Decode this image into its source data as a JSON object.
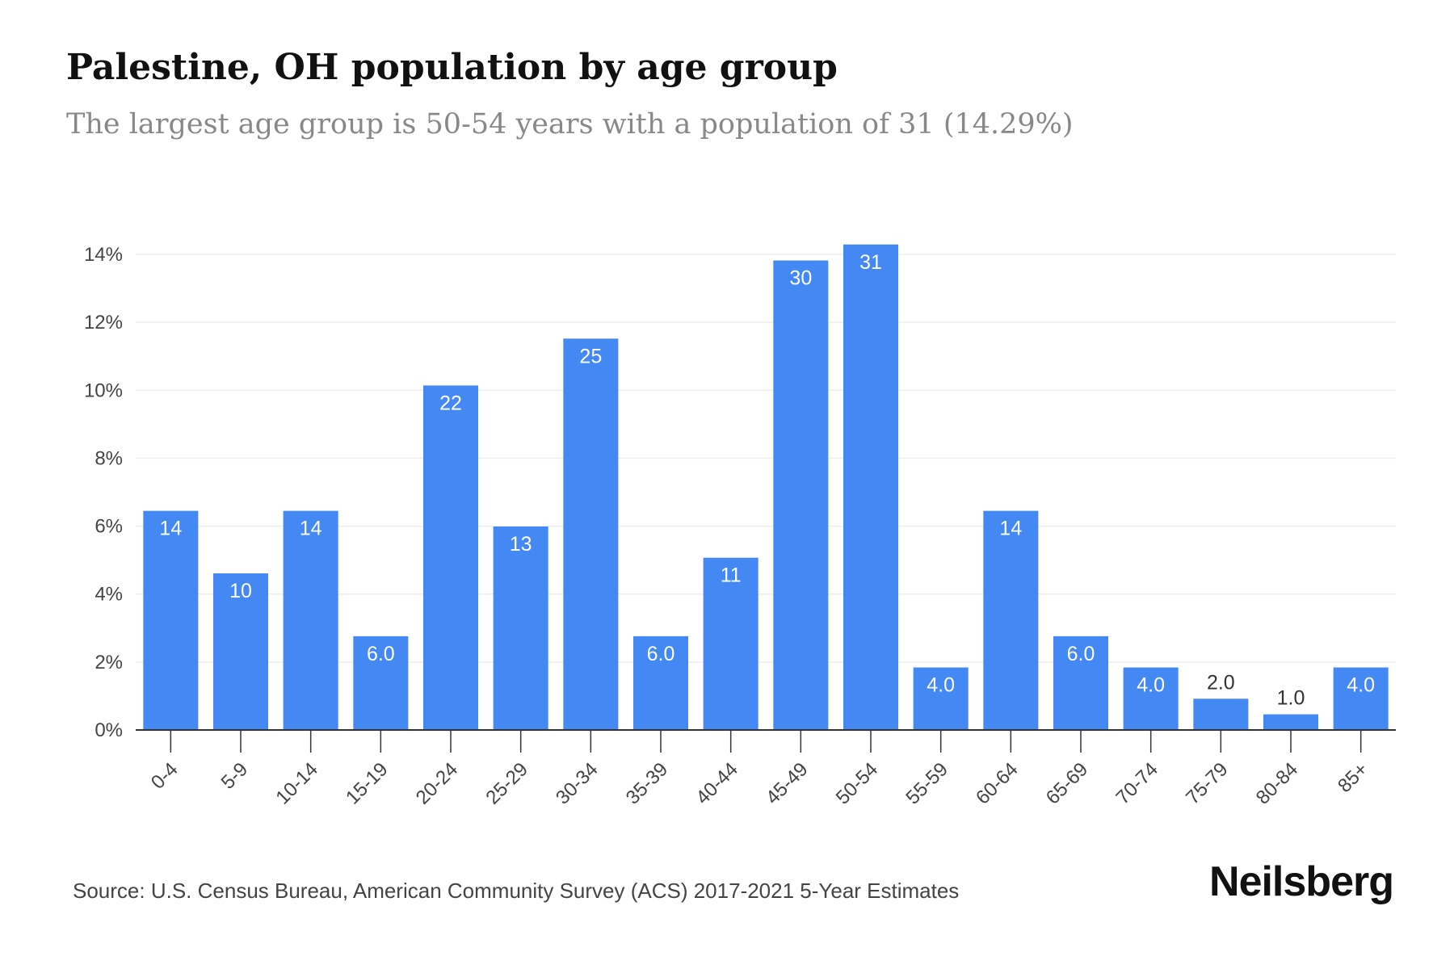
{
  "title": "Palestine, OH population by age group",
  "subtitle": "The largest age group is 50-54 years with a population of 31 (14.29%)",
  "source": "Source: U.S. Census Bureau, American Community Survey (ACS) 2017-2021 5-Year Estimates",
  "brand": "Neilsberg",
  "colors": {
    "bar": "#4488f4",
    "grid": "#eeeeee",
    "axis": "#333333",
    "tick_text": "#444444",
    "label_inside": "#ffffff",
    "label_outside": "#333333"
  },
  "chart_data": {
    "type": "bar",
    "title": "Palestine, OH population by age group",
    "xlabel": "",
    "ylabel": "",
    "ylim": [
      0,
      14
    ],
    "yticks": [
      0,
      2,
      4,
      6,
      8,
      10,
      12,
      14
    ],
    "ytick_labels": [
      "0%",
      "2%",
      "4%",
      "6%",
      "8%",
      "10%",
      "12%",
      "14%"
    ],
    "grid": true,
    "categories": [
      "0-4",
      "5-9",
      "10-14",
      "15-19",
      "20-24",
      "25-29",
      "30-34",
      "35-39",
      "40-44",
      "45-49",
      "50-54",
      "55-59",
      "60-64",
      "65-69",
      "70-74",
      "75-79",
      "80-84",
      "85+"
    ],
    "values_percent": [
      6.45,
      4.61,
      6.45,
      2.76,
      10.14,
      5.99,
      11.52,
      2.76,
      5.07,
      13.82,
      14.29,
      1.84,
      6.45,
      2.76,
      1.84,
      0.92,
      0.46,
      1.84
    ],
    "data_labels": [
      "14",
      "10",
      "14",
      "6.0",
      "22",
      "13",
      "25",
      "6.0",
      "11",
      "30",
      "31",
      "4.0",
      "14",
      "6.0",
      "4.0",
      "2.0",
      "1.0",
      "4.0"
    ]
  }
}
